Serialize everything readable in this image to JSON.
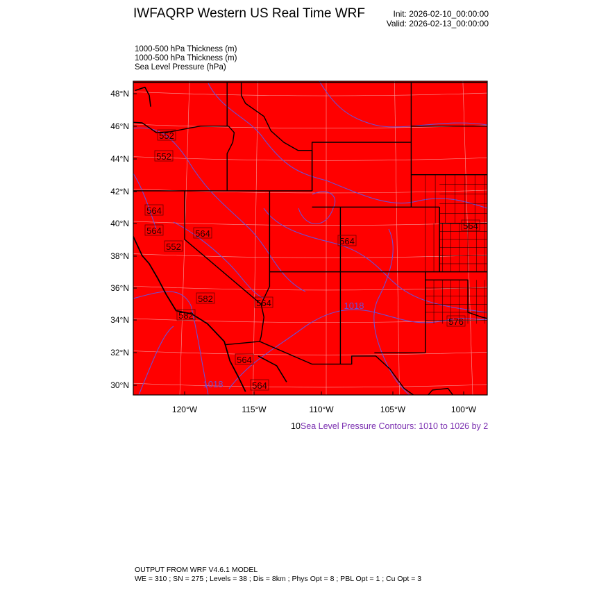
{
  "header": {
    "title": "IWFAQRP Western US Real Time WRF",
    "init": "Init: 2026-02-10_00:00:00",
    "valid": "Valid: 2026-02-13_00:00:00"
  },
  "fields": [
    "1000-500 hPa Thickness   (m)",
    "1000-500 hPa Thickness   (m)",
    "Sea Level Pressure   (hPa)"
  ],
  "map": {
    "fill_color": "#ff0000",
    "contour_color": "#6a4fd8",
    "border_color": "#000000",
    "lat_labels": [
      "48°N",
      "46°N",
      "44°N",
      "42°N",
      "40°N",
      "38°N",
      "36°N",
      "34°N",
      "32°N",
      "30°N"
    ],
    "lon_labels": [
      "120°W",
      "115°W",
      "110°W",
      "105°W",
      "100°W"
    ],
    "thickness_labels": [
      "552",
      "552",
      "564",
      "564",
      "552",
      "564",
      "564",
      "564",
      "582",
      "582",
      "564",
      "564",
      "564",
      "576"
    ],
    "pressure_labels": [
      "1018",
      "1018"
    ]
  },
  "contour_info": {
    "prefix": "10",
    "text": "Sea Level Pressure Contours: 1010 to 1026 by 2"
  },
  "footer": {
    "line1": "OUTPUT FROM WRF V4.6.1 MODEL",
    "line2": "WE = 310 ; SN = 275 ; Levels = 38 ; Dis = 8km ; Phys Opt = 8 ; PBL Opt = 1 ; Cu Opt = 3"
  }
}
